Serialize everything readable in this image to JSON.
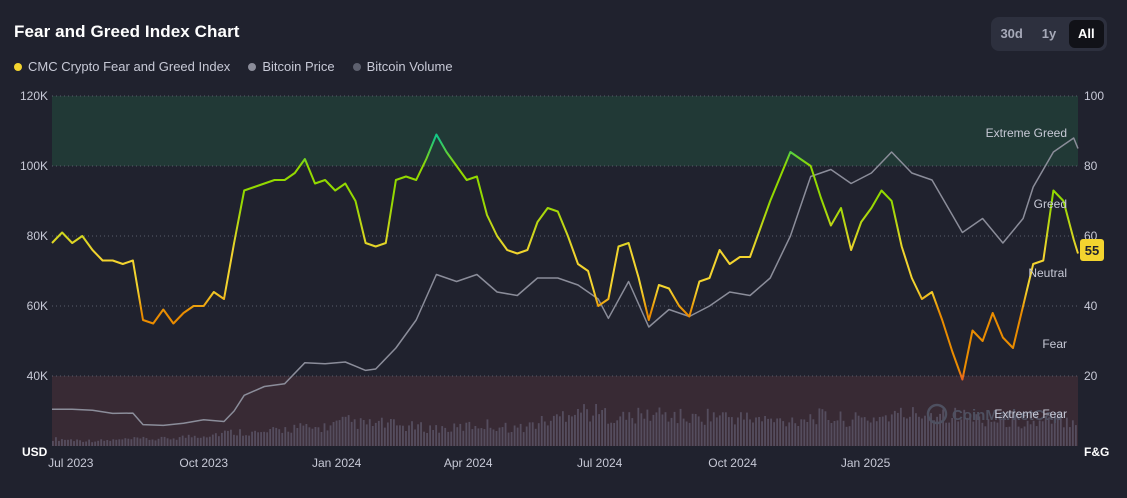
{
  "title": "Fear and Greed Index Chart",
  "legend": [
    {
      "label": "CMC Crypto Fear and Greed Index",
      "color": "#f3d42f"
    },
    {
      "label": "Bitcoin Price",
      "color": "#8b8d9a"
    },
    {
      "label": "Bitcoin Volume",
      "color": "#5d606e"
    }
  ],
  "range_toggle": [
    "30d",
    "1y",
    "All"
  ],
  "range_selected": "All",
  "current_value": "55",
  "watermark": "CoinMarketCap",
  "colors": {
    "background": "#20222e",
    "greed_zone": "#213936",
    "fear_zone": "#382a34",
    "badge": "#f3d42f"
  },
  "chart_data": {
    "type": "line",
    "left_axis": {
      "unit_label": "USD",
      "ticks": [
        "120K",
        "100K",
        "80K",
        "60K",
        "40K"
      ],
      "values": [
        120000,
        100000,
        80000,
        60000,
        40000
      ],
      "ylim": [
        20000,
        120000
      ]
    },
    "right_axis": {
      "unit_label": "F&G",
      "ticks": [
        "100",
        "80",
        "60",
        "40",
        "20"
      ],
      "values": [
        100,
        80,
        60,
        40,
        20
      ],
      "ylim": [
        0,
        100
      ]
    },
    "x_ticks": [
      "Jul 2023",
      "Oct 2023",
      "Jan 2024",
      "Apr 2024",
      "Jul 2024",
      "Oct 2024",
      "Jan 2025"
    ],
    "x_tick_dates": [
      "2023-07-01",
      "2023-10-01",
      "2024-01-01",
      "2024-04-01",
      "2024-07-01",
      "2024-10-01",
      "2025-01-01"
    ],
    "x_range": [
      "2023-06-18",
      "2025-05-28"
    ],
    "zones": [
      {
        "label": "Extreme Greed",
        "from": 80,
        "to": 100
      },
      {
        "label": "Greed",
        "at": 71
      },
      {
        "label": "Neutral",
        "at": 50
      },
      {
        "label": "Fear",
        "at": 30
      },
      {
        "label": "Extreme Fear",
        "from": 0,
        "to": 20
      }
    ],
    "series": [
      {
        "name": "CMC Crypto Fear and Greed Index",
        "axis": "right",
        "points": [
          [
            "2023-06-18",
            58
          ],
          [
            "2023-06-25",
            61
          ],
          [
            "2023-07-02",
            58
          ],
          [
            "2023-07-09",
            60
          ],
          [
            "2023-07-16",
            56
          ],
          [
            "2023-07-23",
            53
          ],
          [
            "2023-07-30",
            53
          ],
          [
            "2023-08-06",
            52
          ],
          [
            "2023-08-13",
            53
          ],
          [
            "2023-08-20",
            36
          ],
          [
            "2023-08-27",
            35
          ],
          [
            "2023-09-03",
            39
          ],
          [
            "2023-09-10",
            35
          ],
          [
            "2023-09-17",
            38
          ],
          [
            "2023-09-24",
            40
          ],
          [
            "2023-10-01",
            40
          ],
          [
            "2023-10-08",
            44
          ],
          [
            "2023-10-15",
            42
          ],
          [
            "2023-10-22",
            58
          ],
          [
            "2023-10-29",
            73
          ],
          [
            "2023-11-05",
            74
          ],
          [
            "2023-11-12",
            75
          ],
          [
            "2023-11-19",
            76
          ],
          [
            "2023-11-26",
            76
          ],
          [
            "2023-12-03",
            78
          ],
          [
            "2023-12-10",
            82
          ],
          [
            "2023-12-17",
            75
          ],
          [
            "2023-12-24",
            76
          ],
          [
            "2023-12-31",
            73
          ],
          [
            "2024-01-07",
            75
          ],
          [
            "2024-01-14",
            70
          ],
          [
            "2024-01-21",
            58
          ],
          [
            "2024-01-28",
            57
          ],
          [
            "2024-02-04",
            58
          ],
          [
            "2024-02-11",
            76
          ],
          [
            "2024-02-18",
            77
          ],
          [
            "2024-02-25",
            76
          ],
          [
            "2024-03-03",
            82
          ],
          [
            "2024-03-10",
            89
          ],
          [
            "2024-03-17",
            84
          ],
          [
            "2024-03-24",
            80
          ],
          [
            "2024-03-31",
            76
          ],
          [
            "2024-04-07",
            77
          ],
          [
            "2024-04-14",
            66
          ],
          [
            "2024-04-21",
            60
          ],
          [
            "2024-04-28",
            56
          ],
          [
            "2024-05-05",
            55
          ],
          [
            "2024-05-12",
            56
          ],
          [
            "2024-05-19",
            64
          ],
          [
            "2024-05-26",
            68
          ],
          [
            "2024-06-02",
            67
          ],
          [
            "2024-06-09",
            60
          ],
          [
            "2024-06-16",
            52
          ],
          [
            "2024-06-23",
            50
          ],
          [
            "2024-06-30",
            40
          ],
          [
            "2024-07-07",
            42
          ],
          [
            "2024-07-14",
            57
          ],
          [
            "2024-07-21",
            58
          ],
          [
            "2024-07-28",
            48
          ],
          [
            "2024-08-04",
            36
          ],
          [
            "2024-08-11",
            46
          ],
          [
            "2024-08-18",
            45
          ],
          [
            "2024-08-25",
            40
          ],
          [
            "2024-09-01",
            37
          ],
          [
            "2024-09-08",
            47
          ],
          [
            "2024-09-15",
            48
          ],
          [
            "2024-09-22",
            56
          ],
          [
            "2024-09-29",
            52
          ],
          [
            "2024-10-06",
            54
          ],
          [
            "2024-10-13",
            54
          ],
          [
            "2024-10-20",
            62
          ],
          [
            "2024-10-27",
            70
          ],
          [
            "2024-11-03",
            77
          ],
          [
            "2024-11-10",
            84
          ],
          [
            "2024-11-17",
            82
          ],
          [
            "2024-11-24",
            80
          ],
          [
            "2024-12-01",
            71
          ],
          [
            "2024-12-08",
            63
          ],
          [
            "2024-12-15",
            68
          ],
          [
            "2024-12-22",
            56
          ],
          [
            "2024-12-29",
            64
          ],
          [
            "2025-01-05",
            68
          ],
          [
            "2025-01-12",
            73
          ],
          [
            "2025-01-19",
            70
          ],
          [
            "2025-01-26",
            57
          ],
          [
            "2025-02-02",
            48
          ],
          [
            "2025-02-09",
            42
          ],
          [
            "2025-02-16",
            44
          ],
          [
            "2025-02-23",
            36
          ],
          [
            "2025-03-02",
            27
          ],
          [
            "2025-03-09",
            19
          ],
          [
            "2025-03-16",
            33
          ],
          [
            "2025-03-23",
            30
          ],
          [
            "2025-03-30",
            38
          ],
          [
            "2025-04-06",
            31
          ],
          [
            "2025-04-13",
            28
          ],
          [
            "2025-04-20",
            40
          ],
          [
            "2025-04-27",
            52
          ],
          [
            "2025-05-04",
            53
          ],
          [
            "2025-05-11",
            73
          ],
          [
            "2025-05-18",
            70
          ],
          [
            "2025-05-25",
            59
          ],
          [
            "2025-05-28",
            55
          ]
        ]
      },
      {
        "name": "Bitcoin Price",
        "axis": "left",
        "points": [
          [
            "2023-06-18",
            30500
          ],
          [
            "2023-07-02",
            30500
          ],
          [
            "2023-07-16",
            30200
          ],
          [
            "2023-07-30",
            29300
          ],
          [
            "2023-08-13",
            29400
          ],
          [
            "2023-08-20",
            26100
          ],
          [
            "2023-09-03",
            25900
          ],
          [
            "2023-09-17",
            26500
          ],
          [
            "2023-10-01",
            27500
          ],
          [
            "2023-10-15",
            27000
          ],
          [
            "2023-10-22",
            30000
          ],
          [
            "2023-10-29",
            34500
          ],
          [
            "2023-11-12",
            37000
          ],
          [
            "2023-11-26",
            37800
          ],
          [
            "2023-12-10",
            43800
          ],
          [
            "2023-12-24",
            43500
          ],
          [
            "2024-01-07",
            44000
          ],
          [
            "2024-01-14",
            42800
          ],
          [
            "2024-01-21",
            41600
          ],
          [
            "2024-01-28",
            42000
          ],
          [
            "2024-02-11",
            48000
          ],
          [
            "2024-02-25",
            56000
          ],
          [
            "2024-03-10",
            69000
          ],
          [
            "2024-03-24",
            67000
          ],
          [
            "2024-04-07",
            69000
          ],
          [
            "2024-04-21",
            64000
          ],
          [
            "2024-05-05",
            63000
          ],
          [
            "2024-05-19",
            68000
          ],
          [
            "2024-06-02",
            68000
          ],
          [
            "2024-06-16",
            66000
          ],
          [
            "2024-06-30",
            62000
          ],
          [
            "2024-07-07",
            56500
          ],
          [
            "2024-07-21",
            67000
          ],
          [
            "2024-08-04",
            54000
          ],
          [
            "2024-08-18",
            59000
          ],
          [
            "2024-09-01",
            57000
          ],
          [
            "2024-09-15",
            60000
          ],
          [
            "2024-09-29",
            64000
          ],
          [
            "2024-10-13",
            63000
          ],
          [
            "2024-10-27",
            68000
          ],
          [
            "2024-11-10",
            80000
          ],
          [
            "2024-11-24",
            97000
          ],
          [
            "2024-12-08",
            99000
          ],
          [
            "2024-12-22",
            95000
          ],
          [
            "2025-01-05",
            98000
          ],
          [
            "2025-01-19",
            104000
          ],
          [
            "2025-02-02",
            98000
          ],
          [
            "2025-02-16",
            96000
          ],
          [
            "2025-03-02",
            86000
          ],
          [
            "2025-03-09",
            81000
          ],
          [
            "2025-03-23",
            85000
          ],
          [
            "2025-04-06",
            78000
          ],
          [
            "2025-04-20",
            85000
          ],
          [
            "2025-04-27",
            94000
          ],
          [
            "2025-05-11",
            104000
          ],
          [
            "2025-05-18",
            106000
          ],
          [
            "2025-05-25",
            108000
          ],
          [
            "2025-05-28",
            105000
          ]
        ]
      },
      {
        "name": "Bitcoin Volume",
        "axis": "volume",
        "relative_level": [
          0.16,
          0.14,
          0.12,
          0.12,
          0.14,
          0.16,
          0.15,
          0.18,
          0.22,
          0.25,
          0.3,
          0.32,
          0.28,
          0.35,
          0.42,
          0.38,
          0.45,
          0.55,
          0.48,
          0.5,
          0.45,
          0.42,
          0.4,
          0.38,
          0.45,
          0.48,
          0.42,
          0.4,
          0.52,
          0.6,
          0.85,
          0.75,
          0.7,
          0.62,
          0.68,
          0.72,
          0.66,
          0.6,
          0.7,
          0.65,
          0.62,
          0.58,
          0.55,
          0.6,
          0.66,
          0.62,
          0.58,
          0.6,
          0.66,
          0.7,
          0.72,
          0.75,
          0.7,
          0.62,
          0.58,
          0.55,
          0.52,
          0.5,
          0.55,
          0.6
        ]
      }
    ]
  }
}
